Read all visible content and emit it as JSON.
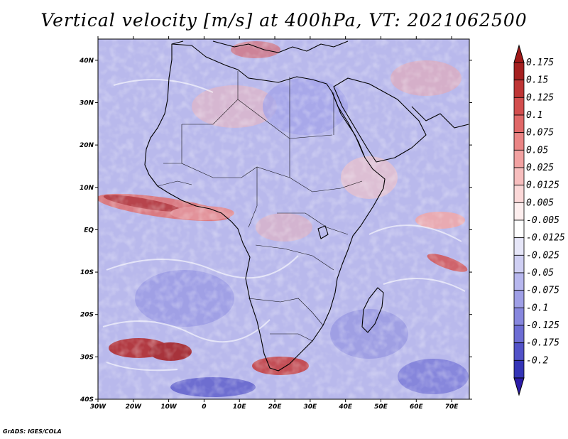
{
  "title": "Vertical velocity [m/s] at 400hPa, VT: 2021062500",
  "footer": "GrADS: IGES/COLA",
  "map": {
    "lon_range": [
      -30,
      75
    ],
    "lat_range": [
      -40,
      45
    ],
    "lat_ticks": [
      {
        "value": 40,
        "label": "40N"
      },
      {
        "value": 30,
        "label": "30N"
      },
      {
        "value": 20,
        "label": "20N"
      },
      {
        "value": 10,
        "label": "10N"
      },
      {
        "value": 0,
        "label": "EQ"
      },
      {
        "value": -10,
        "label": "10S"
      },
      {
        "value": -20,
        "label": "20S"
      },
      {
        "value": -30,
        "label": "30S"
      },
      {
        "value": -40,
        "label": "40S"
      }
    ],
    "lon_ticks": [
      {
        "value": -30,
        "label": "30W"
      },
      {
        "value": -20,
        "label": "20W"
      },
      {
        "value": -10,
        "label": "10W"
      },
      {
        "value": 0,
        "label": "0"
      },
      {
        "value": 10,
        "label": "10E"
      },
      {
        "value": 20,
        "label": "20E"
      },
      {
        "value": 30,
        "label": "30E"
      },
      {
        "value": 40,
        "label": "40E"
      },
      {
        "value": 50,
        "label": "50E"
      },
      {
        "value": 60,
        "label": "60E"
      },
      {
        "value": 70,
        "label": "70E"
      }
    ],
    "colors": {
      "background": "#b9b9ec",
      "frame": "#000000",
      "coastline": "#000000"
    }
  },
  "colorbar": {
    "levels": [
      {
        "label": "0.175",
        "color": "#a52020"
      },
      {
        "label": "0.15",
        "color": "#be3535"
      },
      {
        "label": "0.125",
        "color": "#d24e4e"
      },
      {
        "label": "0.1",
        "color": "#e06868"
      },
      {
        "label": "0.075",
        "color": "#ea8585"
      },
      {
        "label": "0.05",
        "color": "#f2a2a2"
      },
      {
        "label": "0.025",
        "color": "#f7bebe"
      },
      {
        "label": "0.0125",
        "color": "#fbd8d8"
      },
      {
        "label": "0.005",
        "color": "#fdeeee"
      },
      {
        "label": "-0.005",
        "color": "#ffffff"
      },
      {
        "label": "-0.0125",
        "color": "#e6e6f8"
      },
      {
        "label": "-0.025",
        "color": "#cfcff3"
      },
      {
        "label": "-0.05",
        "color": "#b7b7ee"
      },
      {
        "label": "-0.075",
        "color": "#9f9fe6"
      },
      {
        "label": "-0.1",
        "color": "#8787de"
      },
      {
        "label": "-0.125",
        "color": "#6d6dd4"
      },
      {
        "label": "-0.175",
        "color": "#5252c8"
      },
      {
        "label": "-0.2",
        "color": "#3434b6"
      }
    ],
    "top_arrow_color": "#a01818",
    "bottom_arrow_color": "#2c1ca8"
  }
}
